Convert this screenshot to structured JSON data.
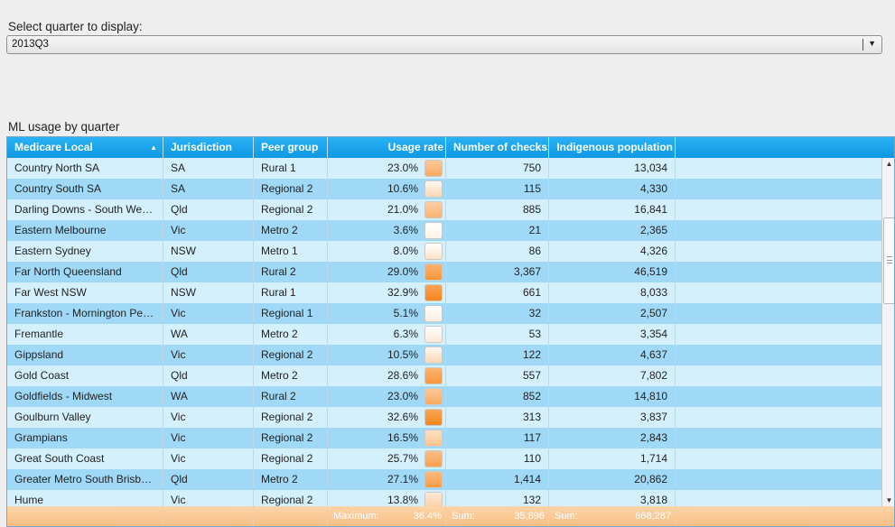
{
  "selector": {
    "label": "Select quarter to display:",
    "value": "2013Q3"
  },
  "table": {
    "title": "ML usage by quarter",
    "columns": [
      "Medicare Local",
      "Jurisdiction",
      "Peer group",
      "Usage rate",
      "Number of checks",
      "Indigenous population"
    ],
    "sorted_column": "Medicare Local",
    "sort_direction": "ascending",
    "rows": [
      {
        "ml": "Country North SA",
        "jur": "SA",
        "peer": "Rural 1",
        "rate": "23.0%",
        "checks": "750",
        "pop": "13,034",
        "level": 0.7
      },
      {
        "ml": "Country South SA",
        "jur": "SA",
        "peer": "Regional 2",
        "rate": "10.6%",
        "checks": "115",
        "pop": "4,330",
        "level": 0.32
      },
      {
        "ml": "Darling Downs - South West Queensland",
        "jur": "Qld",
        "peer": "Regional 2",
        "rate": "21.0%",
        "checks": "885",
        "pop": "16,841",
        "level": 0.64
      },
      {
        "ml": "Eastern Melbourne",
        "jur": "Vic",
        "peer": "Metro 2",
        "rate": "3.6%",
        "checks": "21",
        "pop": "2,365",
        "level": 0.11
      },
      {
        "ml": "Eastern Sydney",
        "jur": "NSW",
        "peer": "Metro 1",
        "rate": "8.0%",
        "checks": "86",
        "pop": "4,326",
        "level": 0.24
      },
      {
        "ml": "Far North Queensland",
        "jur": "Qld",
        "peer": "Rural 2",
        "rate": "29.0%",
        "checks": "3,367",
        "pop": "46,519",
        "level": 0.88
      },
      {
        "ml": "Far West NSW",
        "jur": "NSW",
        "peer": "Rural 1",
        "rate": "32.9%",
        "checks": "661",
        "pop": "8,033",
        "level": 1.0
      },
      {
        "ml": "Frankston - Mornington Peninsula",
        "jur": "Vic",
        "peer": "Regional 1",
        "rate": "5.1%",
        "checks": "32",
        "pop": "2,507",
        "level": 0.15
      },
      {
        "ml": "Fremantle",
        "jur": "WA",
        "peer": "Metro 2",
        "rate": "6.3%",
        "checks": "53",
        "pop": "3,354",
        "level": 0.19
      },
      {
        "ml": "Gippsland",
        "jur": "Vic",
        "peer": "Regional 2",
        "rate": "10.5%",
        "checks": "122",
        "pop": "4,637",
        "level": 0.32
      },
      {
        "ml": "Gold Coast",
        "jur": "Qld",
        "peer": "Metro 2",
        "rate": "28.6%",
        "checks": "557",
        "pop": "7,802",
        "level": 0.87
      },
      {
        "ml": "Goldfields - Midwest",
        "jur": "WA",
        "peer": "Rural 2",
        "rate": "23.0%",
        "checks": "852",
        "pop": "14,810",
        "level": 0.7
      },
      {
        "ml": "Goulburn Valley",
        "jur": "Vic",
        "peer": "Regional 2",
        "rate": "32.6%",
        "checks": "313",
        "pop": "3,837",
        "level": 0.99
      },
      {
        "ml": "Grampians",
        "jur": "Vic",
        "peer": "Regional 2",
        "rate": "16.5%",
        "checks": "117",
        "pop": "2,843",
        "level": 0.5
      },
      {
        "ml": "Great South Coast",
        "jur": "Vic",
        "peer": "Regional 2",
        "rate": "25.7%",
        "checks": "110",
        "pop": "1,714",
        "level": 0.78
      },
      {
        "ml": "Greater Metro South Brisbane",
        "jur": "Qld",
        "peer": "Metro 2",
        "rate": "27.1%",
        "checks": "1,414",
        "pop": "20,862",
        "level": 0.82
      },
      {
        "ml": "Hume",
        "jur": "Vic",
        "peer": "Regional 2",
        "rate": "13.8%",
        "checks": "132",
        "pop": "3,818",
        "level": 0.42
      }
    ],
    "footer": {
      "max_label": "Maximum:",
      "max_value": "36.4%",
      "checks_label": "Sum:",
      "checks_value": "35,896",
      "pop_label": "Sum:",
      "pop_value": "668,287"
    }
  },
  "colors": {
    "swatch_low": "#ffffff",
    "swatch_high": "#f7861c",
    "header": "#1aa6ef",
    "row_light": "#d4f0fd",
    "row_dark": "#9fd9f7",
    "footer": "#f9c894"
  },
  "icons": {
    "select_arrow": "chevron-down-icon",
    "sort_arrow": "sort-ascending-icon",
    "scroll_up": "scroll-up-icon",
    "scroll_down": "scroll-down-icon"
  }
}
